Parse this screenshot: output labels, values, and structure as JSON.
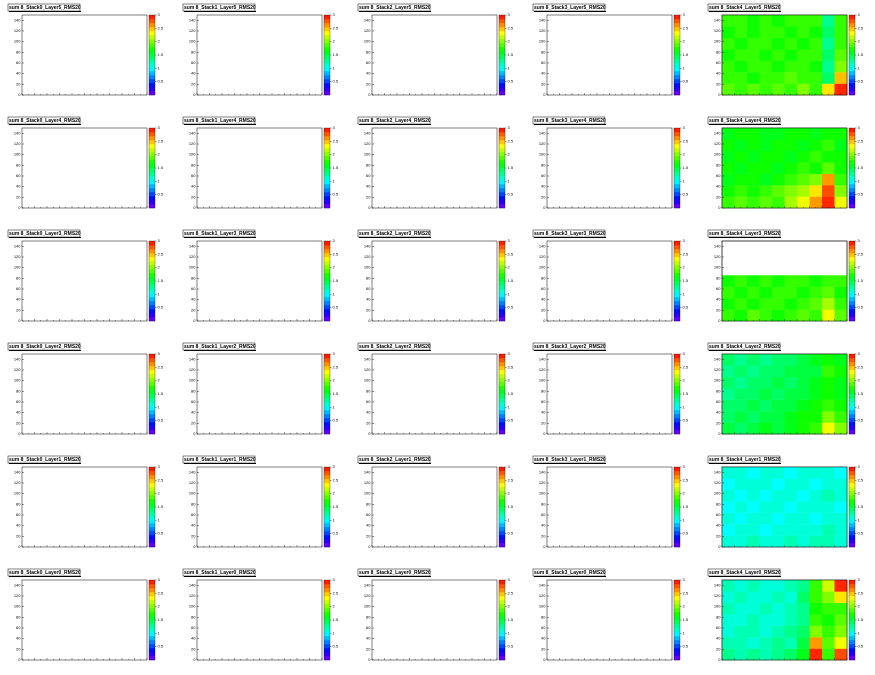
{
  "chart_data": [
    {
      "type": "heatmap",
      "title": "sum 8_Stack0_Layer5_RMS20",
      "ylim": [
        0,
        150
      ],
      "yticks": [
        0,
        20,
        40,
        60,
        80,
        100,
        120,
        140
      ],
      "zlim": [
        0,
        3
      ],
      "zticks": [
        0.5,
        1,
        1.5,
        2,
        2.5,
        3
      ]
    },
    {
      "type": "heatmap",
      "title": "sum 8_Stack1_Layer5_RMS20",
      "ylim": [
        0,
        150
      ],
      "yticks": [
        0,
        20,
        40,
        60,
        80,
        100,
        120,
        140
      ],
      "zlim": [
        0,
        3
      ],
      "zticks": [
        0.5,
        1,
        1.5,
        2,
        2.5,
        3
      ]
    },
    {
      "type": "heatmap",
      "title": "sum 8_Stack2_Layer5_RMS20",
      "ylim": [
        0,
        150
      ],
      "yticks": [
        0,
        20,
        40,
        60,
        80,
        100,
        120,
        140
      ],
      "zlim": [
        0,
        3
      ],
      "zticks": [
        0.5,
        1,
        1.5,
        2,
        2.5,
        3
      ]
    },
    {
      "type": "heatmap",
      "title": "sum 8_Stack3_Layer5_RMS20",
      "ylim": [
        0,
        150
      ],
      "yticks": [
        0,
        20,
        40,
        60,
        80,
        100,
        120,
        140
      ],
      "zlim": [
        0,
        3
      ],
      "zticks": [
        0.5,
        1,
        1.5,
        2,
        2.5,
        3
      ]
    },
    {
      "type": "heatmap",
      "title": "sum 8_Stack4_Layer5_RMS20",
      "ylim": [
        0,
        150
      ],
      "yticks": [
        0,
        20,
        40,
        60,
        80,
        100,
        120,
        140
      ],
      "zlim": [
        0,
        3
      ],
      "zticks": [
        0.5,
        1,
        1.5,
        2,
        2.5,
        3
      ],
      "z": [
        [
          1.9,
          1.8,
          1.9,
          1.8,
          1.9,
          1.8,
          2.0,
          1.8,
          2.4,
          2.9
        ],
        [
          1.8,
          1.8,
          1.7,
          1.8,
          1.8,
          1.9,
          1.8,
          1.8,
          1.4,
          2.5
        ],
        [
          1.8,
          1.7,
          1.8,
          1.8,
          1.7,
          1.8,
          1.8,
          1.7,
          1.3,
          2.0
        ],
        [
          1.7,
          1.8,
          1.8,
          1.7,
          1.8,
          1.7,
          1.8,
          1.8,
          1.4,
          1.9
        ],
        [
          1.8,
          1.7,
          1.8,
          1.8,
          1.7,
          1.8,
          1.7,
          1.8,
          1.3,
          1.8
        ],
        [
          1.7,
          1.8,
          1.7,
          1.8,
          1.8,
          1.7,
          1.8,
          1.7,
          1.4,
          1.8
        ],
        [
          1.8,
          1.8,
          1.7,
          1.8,
          1.7,
          1.8,
          1.8,
          1.8,
          1.3,
          1.8
        ]
      ]
    },
    {
      "type": "heatmap",
      "title": "sum 8_Stack0_Layer4_RMS20",
      "ylim": [
        0,
        150
      ],
      "yticks": [
        0,
        20,
        40,
        60,
        80,
        100,
        120,
        140
      ],
      "zlim": [
        0,
        3
      ],
      "zticks": [
        0.5,
        1,
        1.5,
        2,
        2.5,
        3
      ]
    },
    {
      "type": "heatmap",
      "title": "sum 8_Stack1_Layer4_RMS20",
      "ylim": [
        0,
        150
      ],
      "yticks": [
        0,
        20,
        40,
        60,
        80,
        100,
        120,
        140
      ],
      "zlim": [
        0,
        3
      ],
      "zticks": [
        0.5,
        1,
        1.5,
        2,
        2.5,
        3
      ]
    },
    {
      "type": "heatmap",
      "title": "sum 8_Stack2_Layer4_RMS20",
      "ylim": [
        0,
        150
      ],
      "yticks": [
        0,
        20,
        40,
        60,
        80,
        100,
        120,
        140
      ],
      "zlim": [
        0,
        3
      ],
      "zticks": [
        0.5,
        1,
        1.5,
        2,
        2.5,
        3
      ]
    },
    {
      "type": "heatmap",
      "title": "sum 8_Stack3_Layer4_RMS20",
      "ylim": [
        0,
        150
      ],
      "yticks": [
        0,
        20,
        40,
        60,
        80,
        100,
        120,
        140
      ],
      "zlim": [
        0,
        3
      ],
      "zticks": [
        0.5,
        1,
        1.5,
        2,
        2.5,
        3
      ]
    },
    {
      "type": "heatmap",
      "title": "sum 8_Stack4_Layer4_RMS20",
      "ylim": [
        0,
        150
      ],
      "yticks": [
        0,
        20,
        40,
        60,
        80,
        100,
        120,
        140
      ],
      "zlim": [
        0,
        3
      ],
      "zticks": [
        0.5,
        1,
        1.5,
        2,
        2.5,
        3
      ],
      "z": [
        [
          1.8,
          1.9,
          1.8,
          1.9,
          1.8,
          2.1,
          2.3,
          2.6,
          2.9,
          2.3
        ],
        [
          1.7,
          1.8,
          1.7,
          1.8,
          1.9,
          2.0,
          2.1,
          2.4,
          2.8,
          2.0
        ],
        [
          1.6,
          1.7,
          1.7,
          1.6,
          1.7,
          1.8,
          1.9,
          2.0,
          2.6,
          1.8
        ],
        [
          1.7,
          1.6,
          1.7,
          1.7,
          1.6,
          1.7,
          1.8,
          1.7,
          1.9,
          1.7
        ],
        [
          1.6,
          1.7,
          1.6,
          1.7,
          1.7,
          1.6,
          1.7,
          1.8,
          1.7,
          1.7
        ],
        [
          1.7,
          1.6,
          1.7,
          1.6,
          1.7,
          1.7,
          1.6,
          1.7,
          1.8,
          1.6
        ],
        [
          1.6,
          1.7,
          1.7,
          1.6,
          1.6,
          1.7,
          1.7,
          1.6,
          1.7,
          1.7
        ]
      ]
    },
    {
      "type": "heatmap",
      "title": "sum 8_Stack0_Layer3_RMS20",
      "ylim": [
        0,
        150
      ],
      "yticks": [
        0,
        20,
        40,
        60,
        80,
        100,
        120,
        140
      ],
      "zlim": [
        0,
        3
      ],
      "zticks": [
        0.5,
        1,
        1.5,
        2,
        2.5,
        3
      ]
    },
    {
      "type": "heatmap",
      "title": "sum 8_Stack1_Layer3_RMS20",
      "ylim": [
        0,
        150
      ],
      "yticks": [
        0,
        20,
        40,
        60,
        80,
        100,
        120,
        140
      ],
      "zlim": [
        0,
        3
      ],
      "zticks": [
        0.5,
        1,
        1.5,
        2,
        2.5,
        3
      ]
    },
    {
      "type": "heatmap",
      "title": "sum 8_Stack2_Layer3_RMS20",
      "ylim": [
        0,
        150
      ],
      "yticks": [
        0,
        20,
        40,
        60,
        80,
        100,
        120,
        140
      ],
      "zlim": [
        0,
        3
      ],
      "zticks": [
        0.5,
        1,
        1.5,
        2,
        2.5,
        3
      ]
    },
    {
      "type": "heatmap",
      "title": "sum 8_Stack3_Layer3_RMS20",
      "ylim": [
        0,
        150
      ],
      "yticks": [
        0,
        20,
        40,
        60,
        80,
        100,
        120,
        140
      ],
      "zlim": [
        0,
        3
      ],
      "zticks": [
        0.5,
        1,
        1.5,
        2,
        2.5,
        3
      ]
    },
    {
      "type": "heatmap",
      "title": "sum 8_Stack4_Layer3_RMS20",
      "ylim": [
        0,
        150
      ],
      "yticks": [
        0,
        20,
        40,
        60,
        80,
        100,
        120,
        140
      ],
      "zlim": [
        0,
        3
      ],
      "zticks": [
        0.5,
        1,
        1.5,
        2,
        2.5,
        3
      ],
      "z": [
        [
          1.8,
          1.7,
          1.9,
          1.8,
          1.7,
          1.8,
          1.9,
          1.8,
          2.3,
          1.9
        ],
        [
          1.7,
          1.8,
          1.7,
          1.8,
          1.8,
          1.7,
          1.8,
          1.9,
          2.1,
          1.8
        ],
        [
          1.8,
          1.7,
          1.8,
          1.7,
          1.8,
          1.8,
          1.7,
          1.8,
          1.9,
          1.7
        ],
        [
          1.7,
          1.8,
          1.7,
          1.8,
          1.7,
          1.8,
          1.8,
          1.7,
          1.8,
          1.8
        ],
        [
          null,
          null,
          null,
          null,
          null,
          null,
          null,
          null,
          null,
          null
        ],
        [
          null,
          null,
          null,
          null,
          null,
          null,
          null,
          null,
          null,
          null
        ],
        [
          null,
          null,
          null,
          null,
          null,
          null,
          null,
          null,
          null,
          null
        ]
      ]
    },
    {
      "type": "heatmap",
      "title": "sum 8_Stack0_Layer2_RMS20",
      "ylim": [
        0,
        150
      ],
      "yticks": [
        0,
        20,
        40,
        60,
        80,
        100,
        120,
        140
      ],
      "zlim": [
        0,
        3
      ],
      "zticks": [
        0.5,
        1,
        1.5,
        2,
        2.5,
        3
      ]
    },
    {
      "type": "heatmap",
      "title": "sum 8_Stack1_Layer2_RMS20",
      "ylim": [
        0,
        150
      ],
      "yticks": [
        0,
        20,
        40,
        60,
        80,
        100,
        120,
        140
      ],
      "zlim": [
        0,
        3
      ],
      "zticks": [
        0.5,
        1,
        1.5,
        2,
        2.5,
        3
      ]
    },
    {
      "type": "heatmap",
      "title": "sum 8_Stack2_Layer2_RMS20",
      "ylim": [
        0,
        150
      ],
      "yticks": [
        0,
        20,
        40,
        60,
        80,
        100,
        120,
        140
      ],
      "zlim": [
        0,
        3
      ],
      "zticks": [
        0.5,
        1,
        1.5,
        2,
        2.5,
        3
      ]
    },
    {
      "type": "heatmap",
      "title": "sum 8_Stack3_Layer2_RMS20",
      "ylim": [
        0,
        150
      ],
      "yticks": [
        0,
        20,
        40,
        60,
        80,
        100,
        120,
        140
      ],
      "zlim": [
        0,
        3
      ],
      "zticks": [
        0.5,
        1,
        1.5,
        2,
        2.5,
        3
      ]
    },
    {
      "type": "heatmap",
      "title": "sum 8_Stack4_Layer2_RMS20",
      "ylim": [
        0,
        150
      ],
      "yticks": [
        0,
        20,
        40,
        60,
        80,
        100,
        120,
        140
      ],
      "zlim": [
        0,
        3
      ],
      "zticks": [
        0.5,
        1,
        1.5,
        2,
        2.5,
        3
      ],
      "z": [
        [
          1.5,
          1.4,
          1.5,
          1.6,
          1.5,
          1.6,
          1.7,
          1.8,
          2.3,
          2.0
        ],
        [
          1.4,
          1.5,
          1.4,
          1.5,
          1.5,
          1.6,
          1.7,
          1.7,
          2.0,
          1.8
        ],
        [
          1.4,
          1.4,
          1.5,
          1.4,
          1.5,
          1.5,
          1.6,
          1.7,
          1.8,
          1.7
        ],
        [
          1.3,
          1.4,
          1.4,
          1.5,
          1.4,
          1.5,
          1.5,
          1.6,
          1.7,
          1.6
        ],
        [
          1.4,
          1.3,
          1.4,
          1.4,
          1.5,
          1.4,
          1.5,
          1.6,
          1.7,
          1.6
        ],
        [
          1.3,
          1.4,
          1.3,
          1.4,
          1.4,
          1.5,
          1.5,
          1.5,
          1.8,
          1.7
        ],
        [
          1.4,
          1.3,
          1.4,
          1.3,
          1.4,
          1.4,
          1.5,
          1.6,
          1.7,
          1.6
        ]
      ]
    },
    {
      "type": "heatmap",
      "title": "sum 8_Stack0_Layer1_RMS20",
      "ylim": [
        0,
        150
      ],
      "yticks": [
        0,
        20,
        40,
        60,
        80,
        100,
        120,
        140
      ],
      "zlim": [
        0,
        3
      ],
      "zticks": [
        0.5,
        1,
        1.5,
        2,
        2.5,
        3
      ]
    },
    {
      "type": "heatmap",
      "title": "sum 8_Stack1_Layer1_RMS20",
      "ylim": [
        0,
        150
      ],
      "yticks": [
        0,
        20,
        40,
        60,
        80,
        100,
        120,
        140
      ],
      "zlim": [
        0,
        3
      ],
      "zticks": [
        0.5,
        1,
        1.5,
        2,
        2.5,
        3
      ]
    },
    {
      "type": "heatmap",
      "title": "sum 8_Stack2_Layer1_RMS20",
      "ylim": [
        0,
        150
      ],
      "yticks": [
        0,
        20,
        40,
        60,
        80,
        100,
        120,
        140
      ],
      "zlim": [
        0,
        3
      ],
      "zticks": [
        0.5,
        1,
        1.5,
        2,
        2.5,
        3
      ]
    },
    {
      "type": "heatmap",
      "title": "sum 8_Stack3_Layer1_RMS20",
      "ylim": [
        0,
        150
      ],
      "yticks": [
        0,
        20,
        40,
        60,
        80,
        100,
        120,
        140
      ],
      "zlim": [
        0,
        3
      ],
      "zticks": [
        0.5,
        1,
        1.5,
        2,
        2.5,
        3
      ]
    },
    {
      "type": "heatmap",
      "title": "sum 8_Stack4_Layer1_RMS20",
      "ylim": [
        0,
        150
      ],
      "yticks": [
        0,
        20,
        40,
        60,
        80,
        100,
        120,
        140
      ],
      "zlim": [
        0,
        3
      ],
      "zticks": [
        0.5,
        1,
        1.5,
        2,
        2.5,
        3
      ],
      "z": [
        [
          1.1,
          1.1,
          1.2,
          1.1,
          1.1,
          1.2,
          1.1,
          1.2,
          1.2,
          1.1
        ],
        [
          1.0,
          1.1,
          1.1,
          1.0,
          1.1,
          1.1,
          1.1,
          1.1,
          1.2,
          1.1
        ],
        [
          1.1,
          1.0,
          1.1,
          1.1,
          1.0,
          1.1,
          1.1,
          1.0,
          1.1,
          1.1
        ],
        [
          1.0,
          1.1,
          1.0,
          1.1,
          1.1,
          1.0,
          1.1,
          1.1,
          1.1,
          1.0
        ],
        [
          1.1,
          1.0,
          1.1,
          1.0,
          1.1,
          1.1,
          1.0,
          1.1,
          1.2,
          1.1
        ],
        [
          1.0,
          1.1,
          1.1,
          1.1,
          1.0,
          1.1,
          1.1,
          1.0,
          1.1,
          1.1
        ],
        [
          1.1,
          1.1,
          1.0,
          1.1,
          1.1,
          1.0,
          1.1,
          1.1,
          1.1,
          1.0
        ]
      ]
    },
    {
      "type": "heatmap",
      "title": "sum 8_Stack0_Layer0_RMS20",
      "ylim": [
        0,
        150
      ],
      "yticks": [
        0,
        20,
        40,
        60,
        80,
        100,
        120,
        140
      ],
      "zlim": [
        0,
        3
      ],
      "zticks": [
        0.5,
        1,
        1.5,
        2,
        2.5,
        3
      ]
    },
    {
      "type": "heatmap",
      "title": "sum 8_Stack1_Layer0_RMS20",
      "ylim": [
        0,
        150
      ],
      "yticks": [
        0,
        20,
        40,
        60,
        80,
        100,
        120,
        140
      ],
      "zlim": [
        0,
        3
      ],
      "zticks": [
        0.5,
        1,
        1.5,
        2,
        2.5,
        3
      ]
    },
    {
      "type": "heatmap",
      "title": "sum 8_Stack2_Layer0_RMS20",
      "ylim": [
        0,
        150
      ],
      "yticks": [
        0,
        20,
        40,
        60,
        80,
        100,
        120,
        140
      ],
      "zlim": [
        0,
        3
      ],
      "zticks": [
        0.5,
        1,
        1.5,
        2,
        2.5,
        3
      ]
    },
    {
      "type": "heatmap",
      "title": "sum 8_Stack3_Layer0_RMS20",
      "ylim": [
        0,
        150
      ],
      "yticks": [
        0,
        20,
        40,
        60,
        80,
        100,
        120,
        140
      ],
      "zlim": [
        0,
        3
      ],
      "zticks": [
        0.5,
        1,
        1.5,
        2,
        2.5,
        3
      ]
    },
    {
      "type": "heatmap",
      "title": "sum 8_Stack4_Layer0_RMS20",
      "ylim": [
        0,
        150
      ],
      "yticks": [
        0,
        20,
        40,
        60,
        80,
        100,
        120,
        140
      ],
      "zlim": [
        0,
        3
      ],
      "zticks": [
        0.5,
        1,
        1.5,
        2,
        2.5,
        3
      ],
      "z": [
        [
          1.3,
          1.2,
          1.3,
          1.2,
          1.3,
          1.4,
          1.6,
          2.9,
          1.8,
          2.8
        ],
        [
          1.2,
          1.2,
          1.1,
          1.2,
          1.3,
          1.2,
          1.5,
          2.6,
          1.9,
          2.3
        ],
        [
          1.1,
          1.2,
          1.2,
          1.1,
          1.2,
          1.3,
          1.4,
          2.0,
          1.8,
          2.0
        ],
        [
          1.1,
          1.1,
          1.2,
          1.1,
          1.1,
          1.2,
          1.3,
          1.8,
          1.7,
          1.9
        ],
        [
          1.2,
          1.1,
          1.1,
          1.2,
          1.1,
          1.2,
          1.3,
          1.7,
          1.8,
          1.8
        ],
        [
          1.1,
          1.2,
          1.1,
          1.1,
          1.2,
          1.1,
          1.4,
          1.8,
          2.0,
          2.4
        ],
        [
          1.2,
          1.1,
          1.2,
          1.1,
          1.1,
          1.2,
          1.3,
          1.8,
          2.2,
          2.9
        ]
      ]
    }
  ]
}
